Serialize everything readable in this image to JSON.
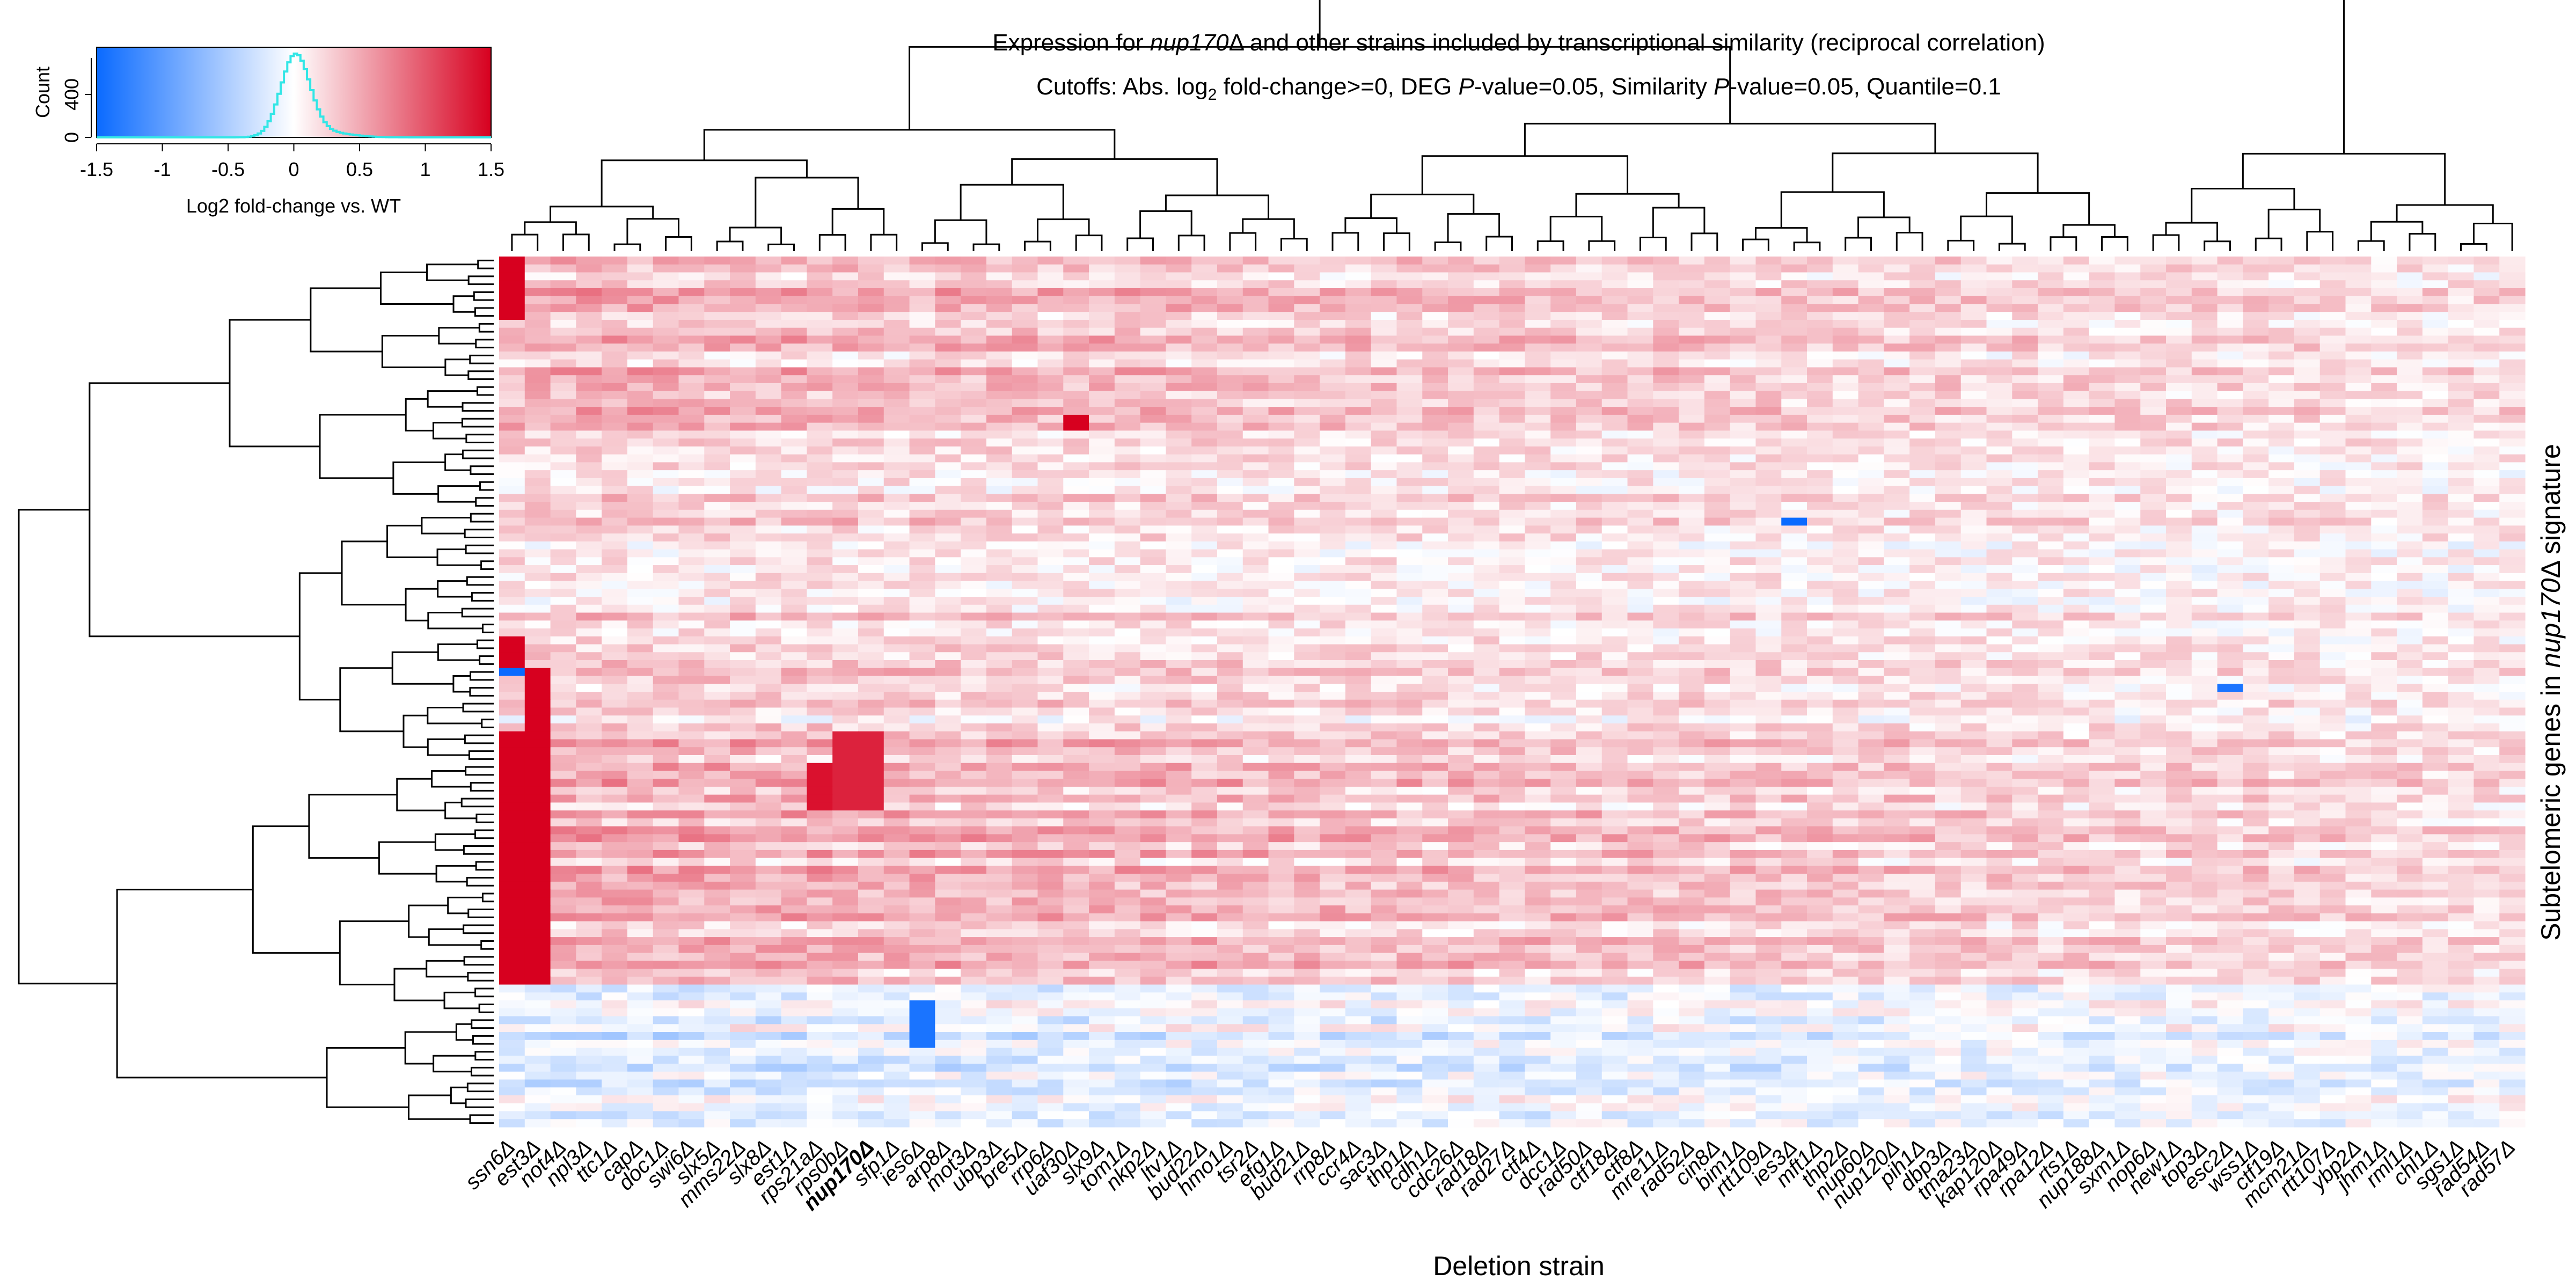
{
  "chart_data": {
    "type": "heatmap",
    "title_line1": {
      "before": "Expression for ",
      "gene": "nup170",
      "delta": "Δ",
      "after": " and other strains included by transcriptional similarity (reciprocal correlation)"
    },
    "title_line2": {
      "p1": "Cutoffs: Abs. log",
      "sub": "2",
      "p2": " fold-change>=0, DEG ",
      "p_italic1": "P",
      "p3": "-value=0.05, Similarity ",
      "p_italic2": "P",
      "p4": "-value=0.05, Quantile=0.1"
    },
    "xlabel": "Deletion strain",
    "ylabel": {
      "before": "Subtelomeric genes in ",
      "gene": "nup170",
      "after": "Δ signature"
    },
    "highlight_strain": "nup170Δ",
    "strains": [
      "ssn6Δ",
      "est3Δ",
      "not4Δ",
      "npl3Δ",
      "ttc1Δ",
      "capΔ",
      "doc1Δ",
      "swi6Δ",
      "slx5Δ",
      "mms22Δ",
      "slx8Δ",
      "est1Δ",
      "rps21aΔ",
      "rps0bΔ",
      "nup170Δ",
      "sfp1Δ",
      "ies6Δ",
      "arp8Δ",
      "mot3Δ",
      "ubp3Δ",
      "bre5Δ",
      "rrp6Δ",
      "uaf30Δ",
      "slx9Δ",
      "tom1Δ",
      "nkp2Δ",
      "ltv1Δ",
      "bud22Δ",
      "hmo1Δ",
      "tsr2Δ",
      "efg1Δ",
      "bud21Δ",
      "rrp8Δ",
      "ccr4Δ",
      "sac3Δ",
      "thp1Δ",
      "cdh1Δ",
      "cdc26Δ",
      "rad18Δ",
      "rad27Δ",
      "ctf4Δ",
      "dcc1Δ",
      "rad50Δ",
      "ctf18Δ",
      "ctf8Δ",
      "mre11Δ",
      "rad52Δ",
      "cin8Δ",
      "bim1Δ",
      "rtt109Δ",
      "ies3Δ",
      "mft1Δ",
      "thp2Δ",
      "nup60Δ",
      "nup120Δ",
      "pih1Δ",
      "dbp3Δ",
      "tma23Δ",
      "kap120Δ",
      "rpa49Δ",
      "rpa12Δ",
      "rts1Δ",
      "nup188Δ",
      "sxm1Δ",
      "nop6Δ",
      "new1Δ",
      "top3Δ",
      "esc2Δ",
      "wss1Δ",
      "ctf19Δ",
      "mcm21Δ",
      "rtt107Δ",
      "ybp2Δ",
      "jhm1Δ",
      "rml1Δ",
      "chl1Δ",
      "sgs1Δ",
      "rad54Δ",
      "rad57Δ"
    ],
    "n_genes": 110,
    "color_key": {
      "title": "Log2 fold-change vs. WT",
      "ylabel": "Count",
      "yticks": [
        "0",
        "400"
      ],
      "xticks": [
        "-1.5",
        "-1",
        "-0.5",
        "0",
        "0.5",
        "1",
        "1.5"
      ],
      "range": [
        -1.5,
        1.5
      ],
      "low_color": "#0a6aff",
      "mid_color": "#ffffff",
      "high_color": "#d7001f",
      "histogram_color": "#33e6e6"
    },
    "cluster_bands": [
      {
        "rows": [
          0,
          22
        ],
        "level": 0.3
      },
      {
        "rows": [
          22,
          60
        ],
        "level": 0.12
      },
      {
        "rows": [
          60,
          92
        ],
        "level": 0.35
      },
      {
        "rows": [
          92,
          110
        ],
        "level": -0.25
      }
    ],
    "strong_cells": [
      {
        "strain": "ssn6Δ",
        "rows": [
          0,
          8
        ],
        "value": 1.5
      },
      {
        "strain": "ssn6Δ",
        "rows": [
          48,
          52
        ],
        "value": 1.5
      },
      {
        "strain": "ssn6Δ",
        "rows": [
          60,
          92
        ],
        "value": 1.5
      },
      {
        "strain": "est3Δ",
        "rows": [
          52,
          92
        ],
        "value": 1.5
      },
      {
        "strain": "rps21aΔ",
        "rows": [
          64,
          70
        ],
        "value": 1.4
      },
      {
        "strain": "rps0bΔ",
        "rows": [
          60,
          70
        ],
        "value": 1.3
      },
      {
        "strain": "nup170Δ",
        "rows": [
          60,
          70
        ],
        "value": 1.3
      },
      {
        "strain": "ies6Δ",
        "rows": [
          94,
          100
        ],
        "value": -1.4
      },
      {
        "strain": "uaf30Δ",
        "rows": [
          20,
          22
        ],
        "value": 1.5
      },
      {
        "strain": "ies3Δ",
        "rows": [
          33,
          34
        ],
        "value": -1.5
      },
      {
        "strain": "esc2Δ",
        "rows": [
          54,
          55
        ],
        "value": -1.4
      },
      {
        "strain": "ssn6Δ",
        "rows": [
          52,
          53
        ],
        "value": -1.5
      }
    ]
  }
}
